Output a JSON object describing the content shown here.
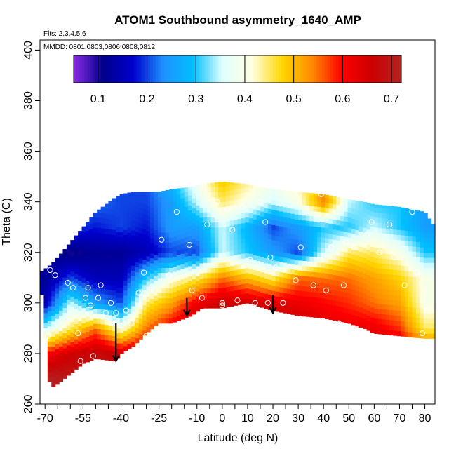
{
  "chart_data": {
    "type": "heatmap",
    "title": "ATOM1 Southbound asymmetry_1640_AMP",
    "annotations": [
      "Flts: 2,3,4,5,6",
      "MMDD: 0801,0803,0806,0808,0812"
    ],
    "xlabel": "Latitude (deg N)",
    "ylabel": "Theta (C)",
    "xlim": [
      -72,
      84
    ],
    "ylim": [
      260,
      404
    ],
    "x_ticks": [
      -70,
      -55,
      -40,
      -25,
      -10,
      0,
      10,
      20,
      30,
      40,
      50,
      60,
      70,
      80
    ],
    "x_tick_labels": [
      "-70",
      "-55",
      "-40",
      "-25",
      "-10",
      "0",
      "10",
      "20",
      "30",
      "40",
      "50",
      "60",
      "70",
      "80"
    ],
    "x_minor_ticks": [
      -65,
      -60,
      -50,
      -45,
      -35,
      -30,
      -20,
      -15,
      -5,
      5,
      15,
      25,
      35,
      45,
      55,
      65,
      75
    ],
    "y_ticks": [
      260,
      280,
      300,
      320,
      340,
      360,
      380,
      400
    ],
    "y_tick_labels": [
      "260",
      "280",
      "300",
      "320",
      "340",
      "360",
      "380",
      "400"
    ],
    "colorbar": {
      "range": [
        0.05,
        0.72
      ],
      "ticks": [
        0.1,
        0.2,
        0.3,
        0.4,
        0.5,
        0.6,
        0.7
      ],
      "tick_labels": [
        "0.1",
        "0.2",
        "0.3",
        "0.4",
        "0.5",
        "0.6",
        "0.7"
      ],
      "colors": [
        "#8a2be2",
        "#00008b",
        "#0000cd",
        "#1e90ff",
        "#00bfff",
        "#e0ffff",
        "#ffffe0",
        "#ffd700",
        "#ff8c00",
        "#ff0000",
        "#cd0000",
        "#b22222"
      ]
    },
    "field": {
      "lat_grid": [
        -70,
        -60,
        -50,
        -40,
        -30,
        -20,
        -10,
        0,
        10,
        20,
        30,
        40,
        50,
        60,
        70,
        80
      ],
      "theta_grid": [
        270,
        280,
        290,
        300,
        310,
        320,
        330,
        340,
        350
      ],
      "values": [
        [
          0.72,
          0.7,
          0.68,
          0.66,
          0.68,
          0.7,
          0.72,
          0.72,
          0.72,
          0.7,
          0.7,
          0.7,
          0.68,
          0.68,
          0.66,
          0.6
        ],
        [
          0.6,
          0.66,
          0.68,
          0.66,
          0.66,
          0.68,
          0.7,
          0.72,
          0.72,
          0.7,
          0.7,
          0.68,
          0.66,
          0.68,
          0.66,
          0.6
        ],
        [
          0.35,
          0.45,
          0.55,
          0.4,
          0.55,
          0.62,
          0.68,
          0.7,
          0.7,
          0.66,
          0.68,
          0.64,
          0.62,
          0.62,
          0.58,
          0.45
        ],
        [
          0.15,
          0.35,
          0.25,
          0.2,
          0.45,
          0.52,
          0.62,
          0.66,
          0.66,
          0.64,
          0.62,
          0.6,
          0.58,
          0.55,
          0.52,
          0.4
        ],
        [
          0.12,
          0.2,
          0.15,
          0.15,
          0.3,
          0.4,
          0.45,
          0.55,
          0.5,
          0.45,
          0.55,
          0.55,
          0.55,
          0.52,
          0.48,
          0.4
        ],
        [
          0.12,
          0.1,
          0.12,
          0.12,
          0.15,
          0.2,
          0.2,
          0.35,
          0.3,
          0.25,
          0.2,
          0.35,
          0.45,
          0.45,
          0.4,
          0.3
        ],
        [
          0.15,
          0.2,
          0.18,
          0.2,
          0.18,
          0.25,
          0.25,
          0.35,
          0.28,
          0.2,
          0.25,
          0.3,
          0.3,
          0.35,
          0.3,
          0.25
        ],
        [
          0.2,
          0.25,
          0.22,
          0.2,
          0.2,
          0.25,
          0.35,
          0.45,
          0.4,
          0.35,
          0.4,
          0.55,
          0.35,
          0.3,
          0.3,
          0.25
        ],
        [
          0.2,
          0.25,
          0.25,
          0.2,
          0.2,
          0.3,
          0.4,
          0.5,
          0.45,
          0.4,
          0.45,
          0.45,
          0.35,
          0.3,
          0.3,
          0.25
        ]
      ],
      "coverage": {
        "lat": [
          -72,
          -68,
          -65,
          -60,
          -55,
          -50,
          -42,
          -40,
          -35,
          -30,
          -25,
          -20,
          -12,
          -8,
          0,
          10,
          20,
          30,
          40,
          50,
          56,
          60,
          70,
          80,
          84
        ],
        "theta_bottom": [
          312,
          266,
          268,
          272,
          276,
          278,
          277,
          280,
          283,
          288,
          292,
          292,
          295,
          298,
          298,
          300,
          297,
          295,
          294,
          292,
          290,
          288,
          287,
          286,
          286
        ],
        "theta_top": [
          312,
          315,
          318,
          324,
          330,
          336,
          342,
          343,
          344,
          344,
          344,
          345,
          346,
          347,
          348,
          347,
          345,
          344,
          343,
          341,
          340,
          339,
          338,
          336,
          330
        ]
      }
    },
    "observation_points": [
      {
        "x": -69,
        "y": 287
      },
      {
        "x": -68,
        "y": 313
      },
      {
        "x": -66,
        "y": 311
      },
      {
        "x": -61,
        "y": 308
      },
      {
        "x": -59,
        "y": 306
      },
      {
        "x": -57,
        "y": 288
      },
      {
        "x": -56,
        "y": 277
      },
      {
        "x": -54,
        "y": 302
      },
      {
        "x": -53,
        "y": 306
      },
      {
        "x": -52,
        "y": 299
      },
      {
        "x": -51,
        "y": 279
      },
      {
        "x": -49,
        "y": 302
      },
      {
        "x": -48,
        "y": 307
      },
      {
        "x": -46,
        "y": 296
      },
      {
        "x": -44,
        "y": 300
      },
      {
        "x": -42,
        "y": 296
      },
      {
        "x": -40,
        "y": 293
      },
      {
        "x": -38,
        "y": 297
      },
      {
        "x": -36,
        "y": 292
      },
      {
        "x": -35,
        "y": 280
      },
      {
        "x": -33,
        "y": 304
      },
      {
        "x": -31,
        "y": 312
      },
      {
        "x": -30,
        "y": 287
      },
      {
        "x": -28,
        "y": 306
      },
      {
        "x": -24,
        "y": 325
      },
      {
        "x": -21,
        "y": 311
      },
      {
        "x": -18,
        "y": 336
      },
      {
        "x": -13,
        "y": 323
      },
      {
        "x": -12,
        "y": 305
      },
      {
        "x": -8,
        "y": 302
      },
      {
        "x": -6,
        "y": 331
      },
      {
        "x": -2,
        "y": 340
      },
      {
        "x": 0,
        "y": 349
      },
      {
        "x": 0,
        "y": 300
      },
      {
        "x": 0,
        "y": 299
      },
      {
        "x": 2,
        "y": 337
      },
      {
        "x": 4,
        "y": 329
      },
      {
        "x": 6,
        "y": 301
      },
      {
        "x": 8,
        "y": 338
      },
      {
        "x": 11,
        "y": 317
      },
      {
        "x": 13,
        "y": 300
      },
      {
        "x": 15,
        "y": 340
      },
      {
        "x": 17,
        "y": 332
      },
      {
        "x": 18,
        "y": 300
      },
      {
        "x": 19,
        "y": 318
      },
      {
        "x": 21,
        "y": 314
      },
      {
        "x": 24,
        "y": 300
      },
      {
        "x": 27,
        "y": 294
      },
      {
        "x": 29,
        "y": 309
      },
      {
        "x": 31,
        "y": 322
      },
      {
        "x": 35,
        "y": 292
      },
      {
        "x": 36,
        "y": 307
      },
      {
        "x": 39,
        "y": 343
      },
      {
        "x": 41,
        "y": 305
      },
      {
        "x": 43,
        "y": 322
      },
      {
        "x": 46,
        "y": 292
      },
      {
        "x": 48,
        "y": 307
      },
      {
        "x": 49,
        "y": 324
      },
      {
        "x": 52,
        "y": 322
      },
      {
        "x": 55,
        "y": 288
      },
      {
        "x": 57,
        "y": 327
      },
      {
        "x": 59,
        "y": 332
      },
      {
        "x": 62,
        "y": 320
      },
      {
        "x": 66,
        "y": 331
      },
      {
        "x": 68,
        "y": 318
      },
      {
        "x": 72,
        "y": 307
      },
      {
        "x": 75,
        "y": 336
      },
      {
        "x": 77,
        "y": 312
      },
      {
        "x": 79,
        "y": 288
      },
      {
        "x": 80,
        "y": 280
      },
      {
        "x": 81,
        "y": 297
      }
    ],
    "arrows": [
      {
        "x": -42,
        "y_top": 292,
        "y_tip": 277
      },
      {
        "x": -14,
        "y_top": 302,
        "y_tip": 295
      },
      {
        "x": 20,
        "y_top": 303,
        "y_tip": 296
      }
    ]
  }
}
